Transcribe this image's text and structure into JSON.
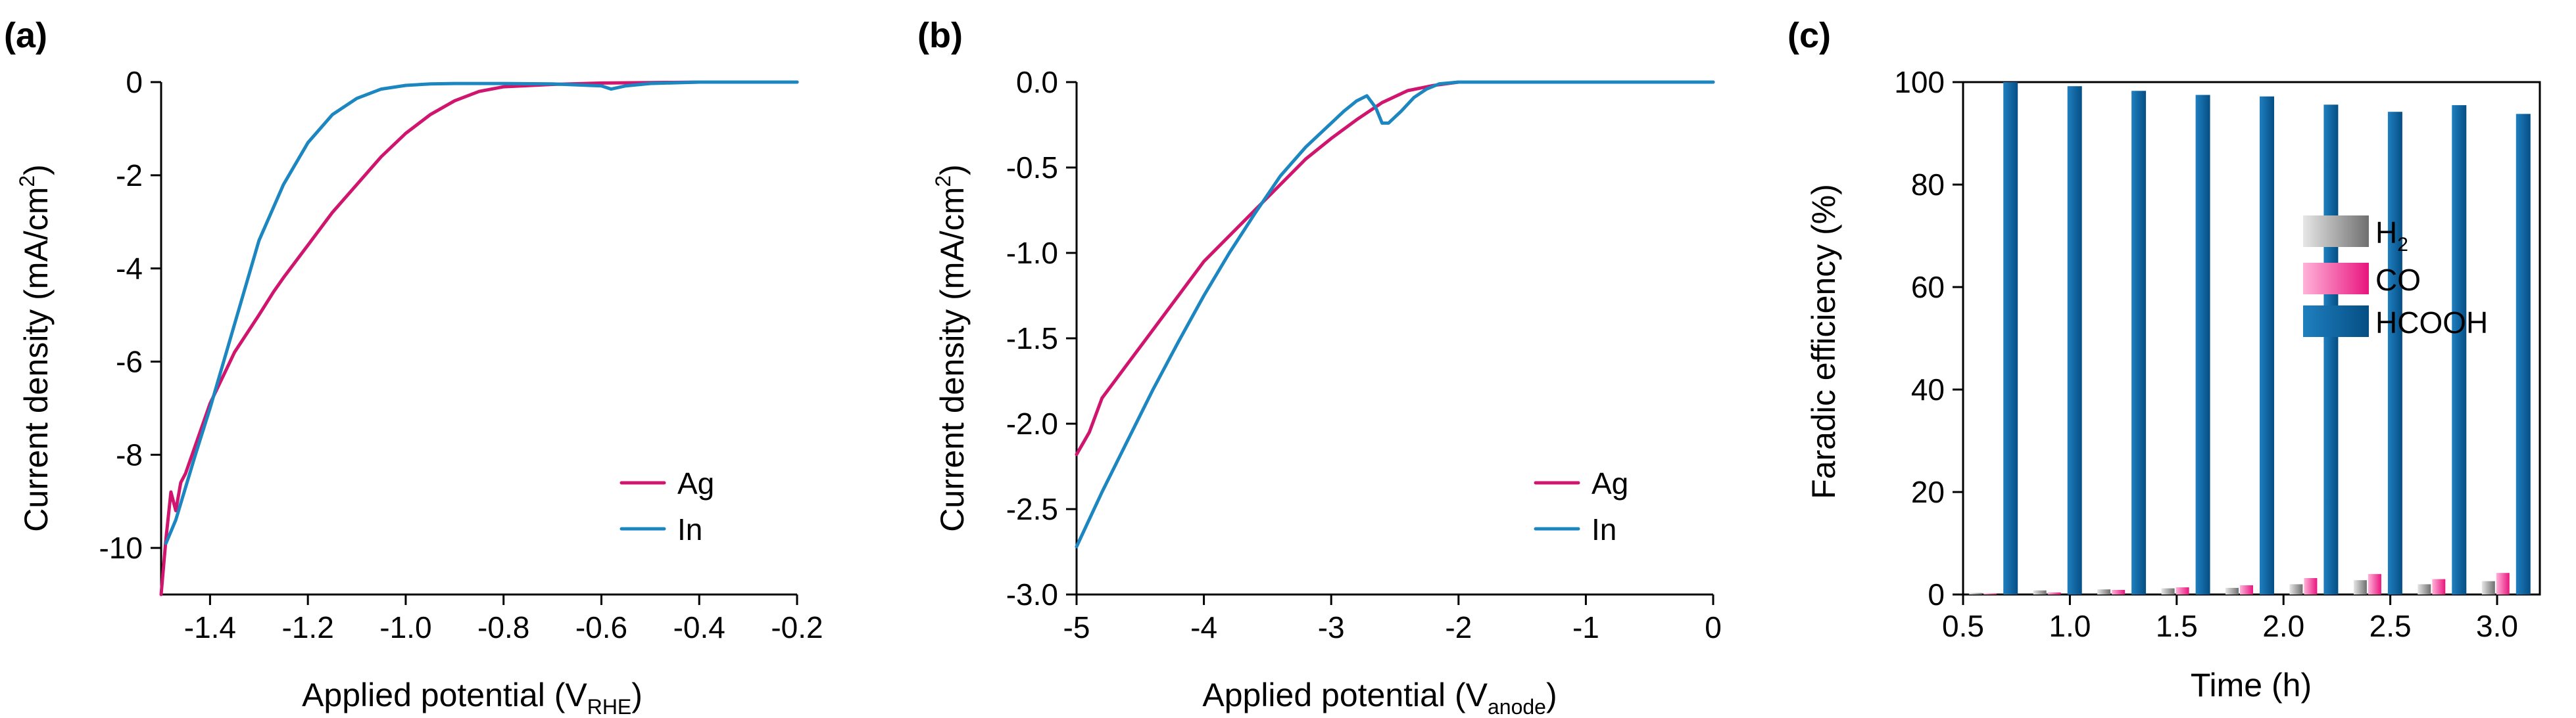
{
  "colors": {
    "ag": "#d0156e",
    "in": "#1c86c0",
    "h2_dark": "#6f6f6f",
    "h2_light": "#e6e6e6",
    "co_dark": "#e8157e",
    "co_light": "#ffb3d9",
    "hcooh_dark": "#054e84",
    "hcooh_light": "#1f7fbf"
  },
  "chart_data": [
    {
      "type": "line",
      "panel": "(a)",
      "xlabel": "Applied potential (V",
      "xlabel_sub": "RHE",
      "xlabel_end": ")",
      "ylabel": "Current density (mA/cm",
      "ylabel_sup": "2",
      "ylabel_end": ")",
      "xlim": [
        -1.5,
        -0.2
      ],
      "ylim": [
        -11,
        0
      ],
      "xticks": [
        -1.4,
        -1.2,
        -1.0,
        -0.8,
        -0.6,
        -0.4,
        -0.2
      ],
      "xtick_labels": [
        "-1.4",
        "-1.2",
        "-1.0",
        "-0.8",
        "-0.6",
        "-0.4",
        "-0.2"
      ],
      "yticks": [
        0,
        -2,
        -4,
        -6,
        -8,
        -10
      ],
      "ytick_labels": [
        "0",
        "-2",
        "-4",
        "-6",
        "-8",
        "-10"
      ],
      "legend": [
        "Ag",
        "In"
      ],
      "series": [
        {
          "name": "Ag",
          "x": [
            -1.5,
            -1.49,
            -1.48,
            -1.47,
            -1.46,
            -1.45,
            -1.42,
            -1.4,
            -1.35,
            -1.3,
            -1.27,
            -1.25,
            -1.2,
            -1.15,
            -1.1,
            -1.05,
            -1.0,
            -0.95,
            -0.9,
            -0.85,
            -0.8,
            -0.7,
            -0.6,
            -0.5,
            -0.4,
            -0.2
          ],
          "y": [
            -11.0,
            -9.8,
            -8.8,
            -9.2,
            -8.6,
            -8.4,
            -7.5,
            -6.9,
            -5.8,
            -5.0,
            -4.5,
            -4.2,
            -3.5,
            -2.8,
            -2.2,
            -1.6,
            -1.1,
            -0.7,
            -0.4,
            -0.2,
            -0.1,
            -0.05,
            -0.02,
            -0.01,
            0.0,
            0.0
          ]
        },
        {
          "name": "In",
          "x": [
            -1.49,
            -1.47,
            -1.45,
            -1.43,
            -1.4,
            -1.35,
            -1.3,
            -1.25,
            -1.2,
            -1.15,
            -1.1,
            -1.05,
            -1.0,
            -0.95,
            -0.9,
            -0.85,
            -0.8,
            -0.7,
            -0.6,
            -0.58,
            -0.55,
            -0.5,
            -0.4,
            -0.2
          ],
          "y": [
            -9.9,
            -9.4,
            -8.7,
            -8.0,
            -7.0,
            -5.2,
            -3.4,
            -2.2,
            -1.3,
            -0.7,
            -0.35,
            -0.15,
            -0.07,
            -0.04,
            -0.03,
            -0.03,
            -0.03,
            -0.04,
            -0.08,
            -0.15,
            -0.08,
            -0.03,
            0.0,
            0.0
          ]
        }
      ]
    },
    {
      "type": "line",
      "panel": "(b)",
      "xlabel": "Applied potential (V",
      "xlabel_sub": "anode",
      "xlabel_end": ")",
      "ylabel": "Current density (mA/cm",
      "ylabel_sup": "2",
      "ylabel_end": ")",
      "xlim": [
        -5,
        0
      ],
      "ylim": [
        -3.0,
        0.0
      ],
      "xticks": [
        -5,
        -4,
        -3,
        -2,
        -1,
        0
      ],
      "xtick_labels": [
        "-5",
        "-4",
        "-3",
        "-2",
        "-1",
        "0"
      ],
      "yticks": [
        0.0,
        -0.5,
        -1.0,
        -1.5,
        -2.0,
        -2.5,
        -3.0
      ],
      "ytick_labels": [
        "0.0",
        "-0.5",
        "-1.0",
        "-1.5",
        "-2.0",
        "-2.5",
        "-3.0"
      ],
      "legend": [
        "Ag",
        "In"
      ],
      "series": [
        {
          "name": "Ag",
          "x": [
            -5.0,
            -4.9,
            -4.8,
            -4.6,
            -4.4,
            -4.2,
            -4.0,
            -3.8,
            -3.6,
            -3.4,
            -3.2,
            -3.0,
            -2.8,
            -2.6,
            -2.4,
            -2.2,
            -2.0,
            -1.5,
            -1.0,
            0.0
          ],
          "y": [
            -2.18,
            -2.05,
            -1.85,
            -1.65,
            -1.45,
            -1.25,
            -1.05,
            -0.9,
            -0.75,
            -0.6,
            -0.45,
            -0.33,
            -0.22,
            -0.12,
            -0.05,
            -0.02,
            0.0,
            0.0,
            0.0,
            0.0
          ]
        },
        {
          "name": "In",
          "x": [
            -5.0,
            -4.8,
            -4.6,
            -4.4,
            -4.2,
            -4.0,
            -3.8,
            -3.6,
            -3.4,
            -3.2,
            -3.0,
            -2.9,
            -2.8,
            -2.72,
            -2.65,
            -2.6,
            -2.55,
            -2.45,
            -2.35,
            -2.25,
            -2.15,
            -2.0,
            -1.5,
            -1.0,
            0.0
          ],
          "y": [
            -2.72,
            -2.4,
            -2.1,
            -1.8,
            -1.52,
            -1.25,
            -1.0,
            -0.77,
            -0.55,
            -0.38,
            -0.24,
            -0.17,
            -0.11,
            -0.08,
            -0.15,
            -0.24,
            -0.24,
            -0.17,
            -0.09,
            -0.04,
            -0.01,
            0.0,
            0.0,
            0.0,
            0.0
          ]
        }
      ]
    },
    {
      "type": "bar",
      "panel": "(c)",
      "xlabel": "Time (h)",
      "ylabel": "Faradic efficiency (%)",
      "xlim": [
        0.5,
        3.2
      ],
      "ylim": [
        0,
        100
      ],
      "xticks": [
        0.5,
        1.0,
        1.5,
        2.0,
        2.5,
        3.0
      ],
      "xtick_labels": [
        "0.5",
        "1.0",
        "1.5",
        "2.0",
        "2.5",
        "3.0"
      ],
      "yticks": [
        0,
        20,
        40,
        60,
        80,
        100
      ],
      "ytick_labels": [
        "0",
        "20",
        "40",
        "60",
        "80",
        "100"
      ],
      "x": [
        0.67,
        0.97,
        1.27,
        1.57,
        1.87,
        2.17,
        2.47,
        2.77,
        3.07
      ],
      "series": [
        {
          "name": "H2",
          "label": "H",
          "label_sub": "2",
          "values": [
            0.3,
            0.8,
            1.0,
            1.2,
            1.3,
            2.0,
            2.8,
            2.0,
            2.6
          ]
        },
        {
          "name": "CO",
          "label": "CO",
          "values": [
            0.2,
            0.4,
            0.9,
            1.4,
            1.8,
            3.2,
            4.0,
            3.0,
            4.2
          ]
        },
        {
          "name": "HCOOH",
          "label": "HCOOH",
          "values": [
            100,
            99.2,
            98.3,
            97.5,
            97.2,
            95.6,
            94.2,
            95.5,
            93.8
          ]
        }
      ]
    }
  ]
}
